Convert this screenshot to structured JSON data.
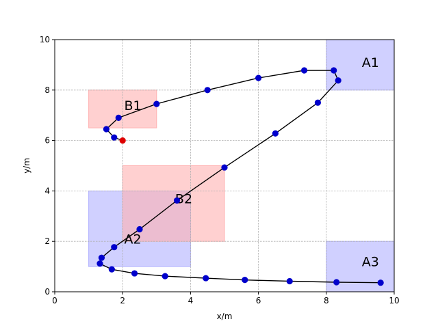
{
  "chart_data": {
    "type": "scatter",
    "title": "",
    "xlabel": "x/m",
    "ylabel": "y/m",
    "xlim": [
      0,
      10
    ],
    "ylim": [
      0,
      10
    ],
    "xticks": [
      "0",
      "2",
      "4",
      "6",
      "8",
      "10"
    ],
    "yticks": [
      "0",
      "2",
      "4",
      "6",
      "8",
      "10"
    ],
    "grid": true,
    "regions": [
      {
        "label": "A1",
        "x": [
          8,
          10
        ],
        "y": [
          8,
          10
        ],
        "color": "#b0b0ff"
      },
      {
        "label": "A2",
        "x": [
          1,
          4
        ],
        "y": [
          1,
          4
        ],
        "color": "#b0b0ff"
      },
      {
        "label": "A3",
        "x": [
          8,
          10
        ],
        "y": [
          0,
          2
        ],
        "color": "#b0b0ff"
      },
      {
        "label": "B1",
        "x": [
          1,
          3
        ],
        "y": [
          6.5,
          8
        ],
        "color": "#ffb0b0"
      },
      {
        "label": "B2",
        "x": [
          2,
          5
        ],
        "y": [
          2,
          5
        ],
        "color": "#ffb0b0"
      }
    ],
    "path": {
      "line_color": "#000000",
      "marker_color": "#0000cc",
      "start_marker_color": "#dd0000",
      "points": [
        [
          2.0,
          6.0
        ],
        [
          1.75,
          6.12
        ],
        [
          1.52,
          6.45
        ],
        [
          1.88,
          6.9
        ],
        [
          3.0,
          7.45
        ],
        [
          4.5,
          8.0
        ],
        [
          6.0,
          8.48
        ],
        [
          7.35,
          8.78
        ],
        [
          8.22,
          8.78
        ],
        [
          8.35,
          8.38
        ],
        [
          7.75,
          7.5
        ],
        [
          6.5,
          6.28
        ],
        [
          5.0,
          4.93
        ],
        [
          3.6,
          3.62
        ],
        [
          2.5,
          2.48
        ],
        [
          1.75,
          1.77
        ],
        [
          1.38,
          1.35
        ],
        [
          1.33,
          1.12
        ],
        [
          1.68,
          0.89
        ],
        [
          2.35,
          0.73
        ],
        [
          3.25,
          0.62
        ],
        [
          4.45,
          0.54
        ],
        [
          5.6,
          0.47
        ],
        [
          6.92,
          0.42
        ],
        [
          8.3,
          0.38
        ],
        [
          9.6,
          0.36
        ]
      ]
    }
  }
}
